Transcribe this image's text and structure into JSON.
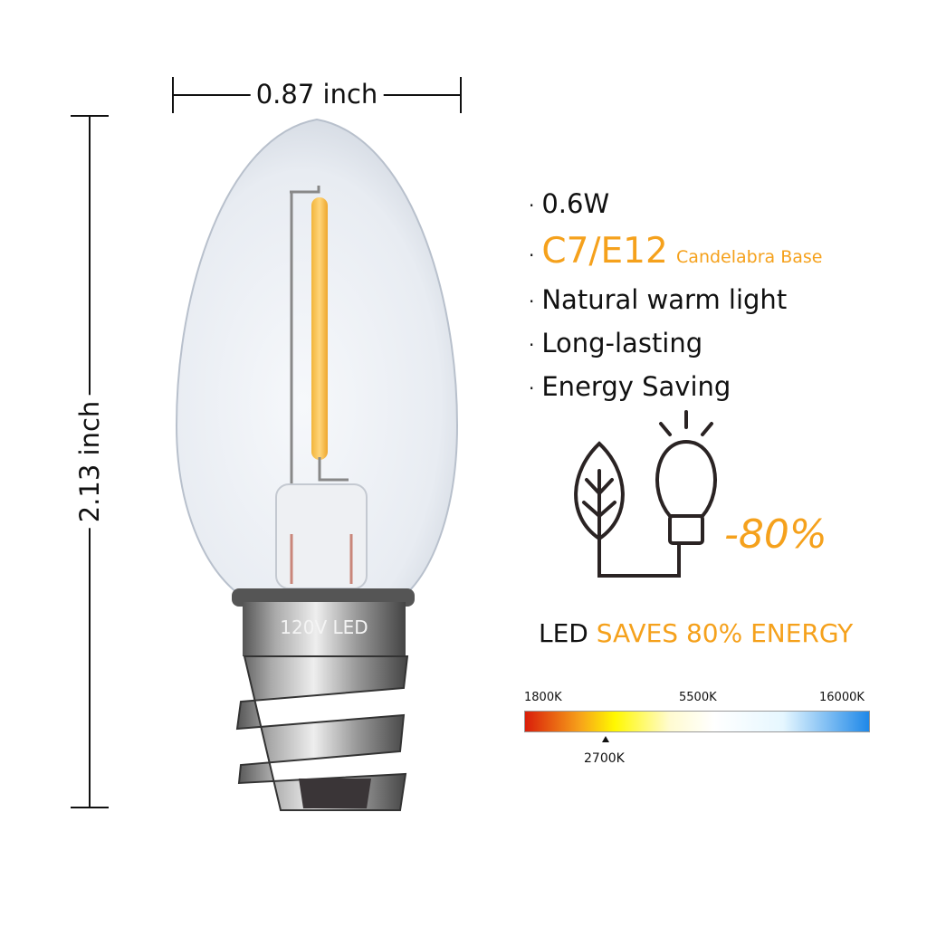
{
  "dimensions": {
    "width_label": "0.87 inch",
    "height_label": "2.13 inch"
  },
  "product": {
    "base_marking": "120V LED"
  },
  "features": [
    {
      "text": "0.6W"
    },
    {
      "text": "C7/E12",
      "subtext": "Candelabra Base"
    },
    {
      "text": "Natural warm light"
    },
    {
      "text": "Long-lasting"
    },
    {
      "text": "Energy Saving"
    }
  ],
  "energy": {
    "icons": [
      "leaf-icon",
      "lightbulb-icon"
    ],
    "saving_label": "-80%",
    "headline_prefix": "LED",
    "headline_highlight": "SAVES 80% ENERGY"
  },
  "color_temperature": {
    "scale_labels": [
      "1800K",
      "5500K",
      "16000K"
    ],
    "marker_label": "2700K",
    "gradient": [
      "#d91e0a",
      "#f7a21a",
      "#fff800",
      "#fffbd0",
      "#ffffff",
      "#e6f7ff",
      "#1e88e8"
    ]
  },
  "colors": {
    "accent": "#f5a11c",
    "text": "#111111"
  }
}
